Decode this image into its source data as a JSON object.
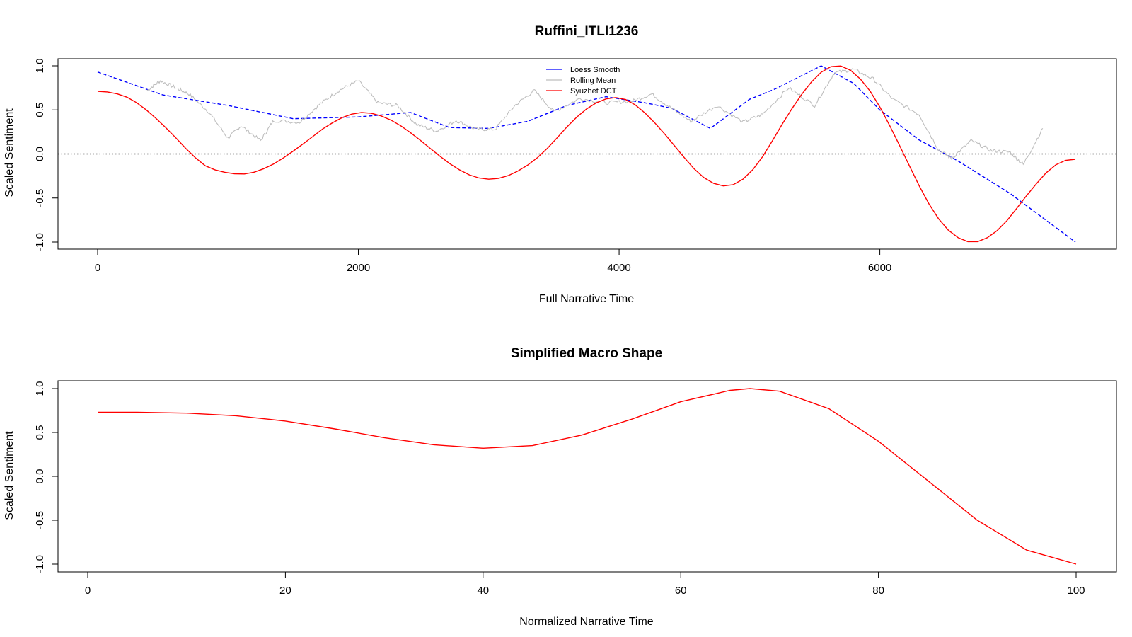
{
  "chart_data": [
    {
      "type": "line",
      "title": "Ruffini_ITLI1236",
      "xlabel": "Full Narrative Time",
      "ylabel": "Scaled Sentiment",
      "xlim": [
        0,
        7500
      ],
      "ylim": [
        -1,
        1
      ],
      "x_ticks": [
        "0",
        "2000",
        "4000",
        "6000"
      ],
      "y_ticks": [
        "-1.0",
        "-0.5",
        "0.0",
        "0.5",
        "1.0"
      ],
      "reference_line": 0,
      "legend": {
        "position": "top-center",
        "entries": [
          "Loess Smooth",
          "Rolling Mean",
          "Syuzhet DCT"
        ]
      },
      "series": [
        {
          "name": "Loess Smooth",
          "color": "#0000ff",
          "style": "dashed",
          "x": [
            0,
            250,
            500,
            1000,
            1500,
            2000,
            2400,
            2700,
            3000,
            3300,
            3600,
            3900,
            4200,
            4400,
            4700,
            5000,
            5200,
            5550,
            5800,
            6000,
            6300,
            6600,
            7000,
            7500
          ],
          "y": [
            0.93,
            0.8,
            0.67,
            0.55,
            0.4,
            0.42,
            0.47,
            0.3,
            0.29,
            0.37,
            0.55,
            0.65,
            0.58,
            0.52,
            0.29,
            0.62,
            0.74,
            1.0,
            0.8,
            0.5,
            0.16,
            -0.08,
            -0.45,
            -1.0
          ]
        },
        {
          "name": "Rolling Mean",
          "color": "#bebebe",
          "style": "solid",
          "x": [
            380,
            480,
            600,
            700,
            850,
            1000,
            1100,
            1250,
            1350,
            1550,
            1700,
            1850,
            2000,
            2150,
            2300,
            2450,
            2600,
            2750,
            2900,
            3050,
            3200,
            3350,
            3500,
            3700,
            3900,
            4100,
            4250,
            4400,
            4550,
            4750,
            4950,
            5100,
            5300,
            5500,
            5650,
            5800,
            5950,
            6100,
            6300,
            6450,
            6550,
            6700,
            6850,
            7000,
            7100,
            7250
          ],
          "y": [
            0.72,
            0.83,
            0.75,
            0.68,
            0.48,
            0.18,
            0.32,
            0.15,
            0.38,
            0.36,
            0.56,
            0.72,
            0.83,
            0.58,
            0.55,
            0.33,
            0.26,
            0.38,
            0.28,
            0.28,
            0.55,
            0.72,
            0.48,
            0.63,
            0.58,
            0.6,
            0.68,
            0.52,
            0.37,
            0.55,
            0.36,
            0.45,
            0.75,
            0.55,
            0.92,
            0.96,
            0.85,
            0.62,
            0.45,
            0.05,
            -0.05,
            0.15,
            0.04,
            0.02,
            -0.12,
            0.29
          ]
        },
        {
          "name": "Syuzhet DCT",
          "color": "#ff0000",
          "style": "solid",
          "x": [
            0,
            75,
            150,
            225,
            300,
            375,
            450,
            525,
            600,
            675,
            750,
            825,
            900,
            975,
            1050,
            1125,
            1200,
            1275,
            1350,
            1425,
            1500,
            1575,
            1650,
            1725,
            1800,
            1875,
            1950,
            2025,
            2100,
            2175,
            2250,
            2325,
            2400,
            2475,
            2550,
            2625,
            2700,
            2775,
            2850,
            2925,
            3000,
            3075,
            3150,
            3225,
            3300,
            3375,
            3450,
            3525,
            3600,
            3675,
            3750,
            3825,
            3900,
            3975,
            4050,
            4125,
            4200,
            4275,
            4350,
            4425,
            4500,
            4575,
            4650,
            4725,
            4800,
            4875,
            4950,
            5025,
            5100,
            5175,
            5250,
            5325,
            5400,
            5475,
            5550,
            5625,
            5700,
            5775,
            5850,
            5925,
            6000,
            6075,
            6150,
            6225,
            6300,
            6375,
            6450,
            6525,
            6600,
            6675,
            6750,
            6825,
            6900,
            6975,
            7050,
            7125,
            7200,
            7275,
            7350,
            7425,
            7500
          ],
          "y": [
            0.71,
            0.704,
            0.682,
            0.644,
            0.581,
            0.497,
            0.401,
            0.295,
            0.182,
            0.064,
            -0.043,
            -0.133,
            -0.18,
            -0.208,
            -0.225,
            -0.227,
            -0.207,
            -0.167,
            -0.113,
            -0.045,
            0.032,
            0.113,
            0.197,
            0.283,
            0.353,
            0.412,
            0.452,
            0.47,
            0.461,
            0.431,
            0.384,
            0.32,
            0.242,
            0.155,
            0.064,
            -0.025,
            -0.109,
            -0.18,
            -0.237,
            -0.273,
            -0.287,
            -0.278,
            -0.246,
            -0.193,
            -0.125,
            -0.04,
            0.064,
            0.183,
            0.308,
            0.418,
            0.51,
            0.58,
            0.625,
            0.64,
            0.618,
            0.556,
            0.463,
            0.351,
            0.226,
            0.092,
            -0.042,
            -0.168,
            -0.268,
            -0.334,
            -0.363,
            -0.349,
            -0.287,
            -0.18,
            -0.032,
            0.148,
            0.335,
            0.512,
            0.675,
            0.817,
            0.928,
            0.99,
            0.998,
            0.95,
            0.851,
            0.713,
            0.533,
            0.324,
            0.1,
            -0.13,
            -0.357,
            -0.562,
            -0.734,
            -0.864,
            -0.95,
            -0.995,
            -0.995,
            -0.95,
            -0.87,
            -0.757,
            -0.617,
            -0.474,
            -0.34,
            -0.215,
            -0.123,
            -0.072,
            -0.06
          ]
        }
      ]
    },
    {
      "type": "line",
      "title": "Simplified Macro Shape",
      "xlabel": "Normalized Narrative Time",
      "ylabel": "Scaled Sentiment",
      "xlim": [
        0,
        100
      ],
      "ylim": [
        -1,
        1
      ],
      "x_ticks": [
        "0",
        "20",
        "40",
        "60",
        "80",
        "100"
      ],
      "y_ticks": [
        "-1.0",
        "-0.5",
        "0.0",
        "0.5",
        "1.0"
      ],
      "series": [
        {
          "color": "#ff0000",
          "style": "solid",
          "x": [
            1,
            5,
            10,
            15,
            20,
            25,
            30,
            35,
            40,
            45,
            50,
            55,
            60,
            65,
            67,
            70,
            75,
            80,
            85,
            90,
            95,
            100
          ],
          "y": [
            0.73,
            0.73,
            0.72,
            0.69,
            0.63,
            0.54,
            0.44,
            0.36,
            0.32,
            0.35,
            0.47,
            0.65,
            0.85,
            0.98,
            1.0,
            0.97,
            0.77,
            0.4,
            -0.05,
            -0.5,
            -0.84,
            -1.0
          ]
        }
      ]
    }
  ]
}
